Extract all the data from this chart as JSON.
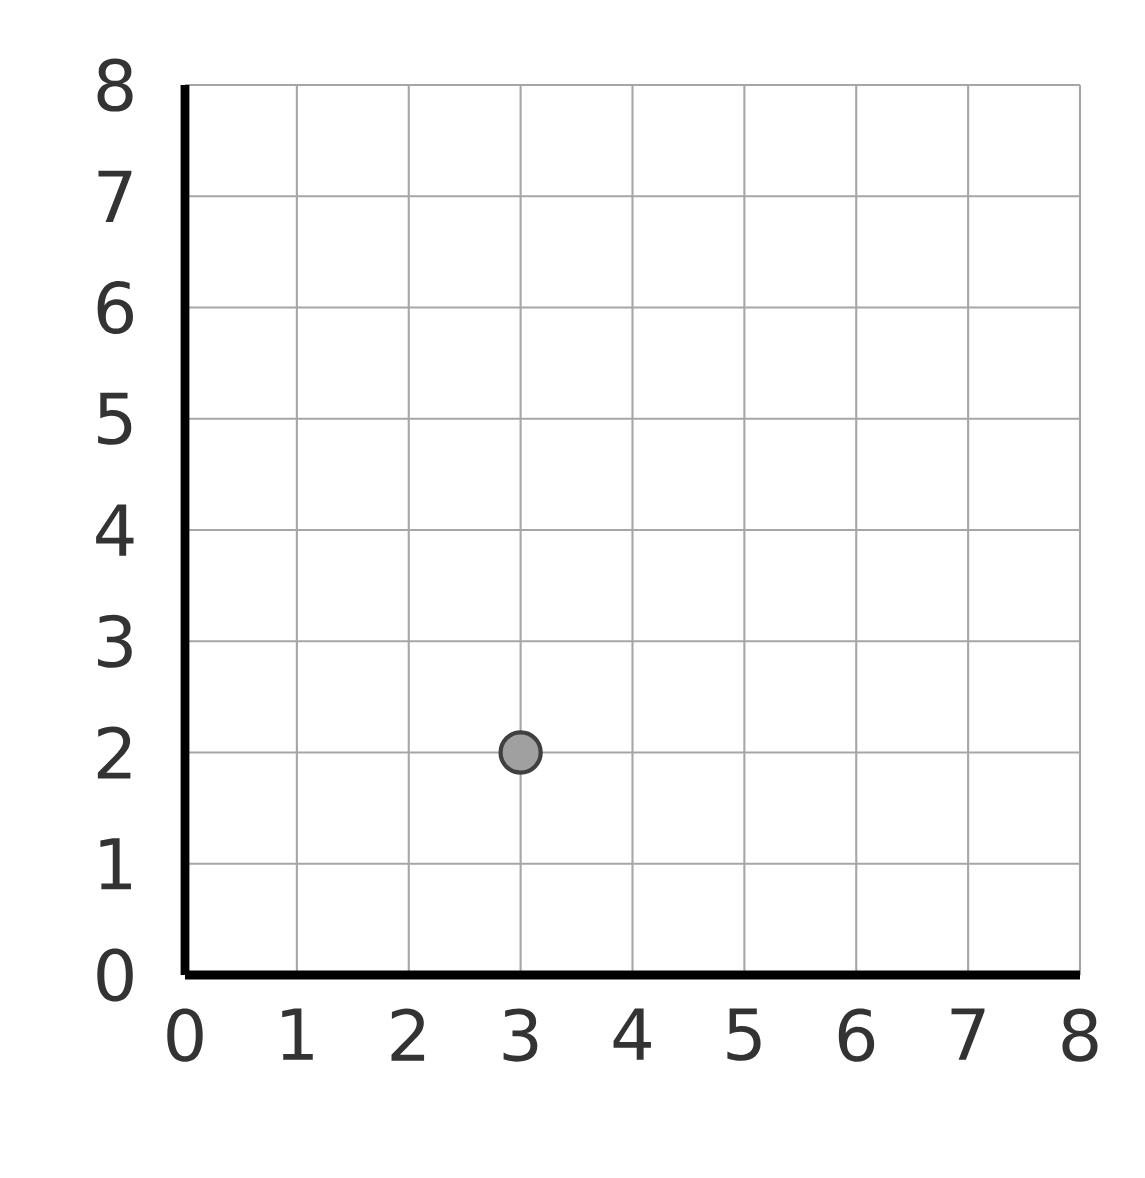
{
  "chart_data": {
    "type": "scatter",
    "x": [
      3
    ],
    "values": [
      2
    ],
    "color": "#a0a0a0",
    "xlim": [
      0,
      8
    ],
    "ylim": [
      0,
      8
    ],
    "xticks": [
      0,
      1,
      2,
      3,
      4,
      5,
      6,
      7,
      8
    ],
    "yticks": [
      0,
      1,
      2,
      3,
      4,
      5,
      6,
      7,
      8
    ],
    "grid": true,
    "marker": "circle"
  }
}
